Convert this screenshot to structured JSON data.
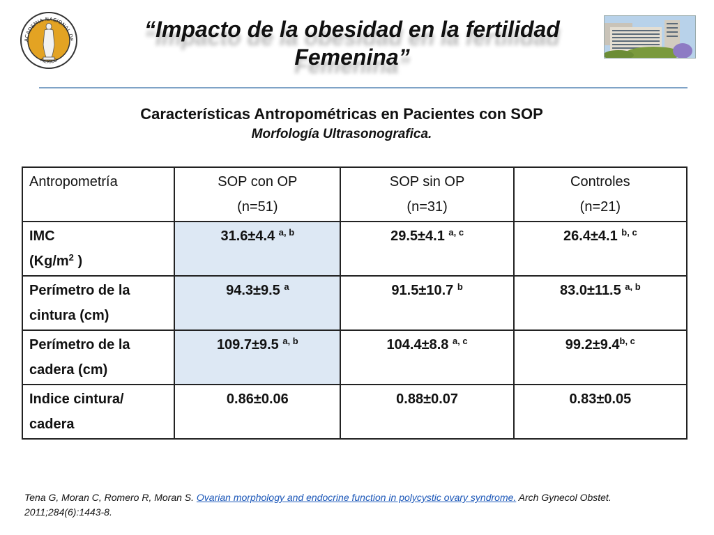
{
  "header": {
    "title_line1": "“Impacto de la obesidad en la fertilidad",
    "title_line2": "Femenina”",
    "logo_text_top": "ACADEMIA NACIONAL DE MEDICINA",
    "logo_text_bottom": "MÉXICO"
  },
  "subtitle": "Características Antropométricas en Pacientes con  SOP",
  "subsubtitle": "Morfología Ultrasonografica.",
  "table": {
    "headers": [
      {
        "line1": "Antropometría",
        "line2": ""
      },
      {
        "line1": "SOP con OP",
        "line2": "(n=51)"
      },
      {
        "line1": "SOP sin OP",
        "line2": "(n=31)"
      },
      {
        "line1": "Controles",
        "line2": "(n=21)"
      }
    ],
    "rows": [
      {
        "label_line1": "IMC",
        "label_line2": "(Kg/m",
        "label_sup": "2",
        "label_after": " )",
        "cells": [
          {
            "value": "31.6±4.4 ",
            "sup": "a, b"
          },
          {
            "value": "29.5±4.1 ",
            "sup": "a, c"
          },
          {
            "value": "26.4±4.1 ",
            "sup": "b, c"
          }
        ]
      },
      {
        "label_line1": "Perímetro de la",
        "label_line2": "cintura (cm)",
        "cells": [
          {
            "value": "94.3±9.5 ",
            "sup": "a"
          },
          {
            "value": "91.5±10.7 ",
            "sup": "b"
          },
          {
            "value": "83.0±11.5 ",
            "sup": "a, b"
          }
        ]
      },
      {
        "label_line1": "Perímetro de la",
        "label_line2": "cadera (cm)",
        "cells": [
          {
            "value": "109.7±9.5 ",
            "sup": "a, b"
          },
          {
            "value": "104.4±8.8 ",
            "sup": "a, c"
          },
          {
            "value": "99.2±9.4",
            "sup": "b, c"
          }
        ]
      },
      {
        "label_line1": "Indice cintura/",
        "label_line2": "cadera",
        "cells": [
          {
            "value": "0.86±0.06",
            "sup": ""
          },
          {
            "value": "0.88±0.07",
            "sup": ""
          },
          {
            "value": "0.83±0.05",
            "sup": ""
          }
        ]
      }
    ]
  },
  "reference": {
    "authors": "Tena G, Moran C, Romero R, Moran S. ",
    "link1": "Ovarian morphology and endocrine function",
    "link2": " in polycystic ovary syndrome.",
    "journal": " Arch Gynecol Obstet. 2011;284(6):1443-8."
  },
  "colors": {
    "rule": "#7fa3c7",
    "highlight": "#dde8f4",
    "link": "#1a56b8",
    "logo_gold": "#e3a323"
  }
}
